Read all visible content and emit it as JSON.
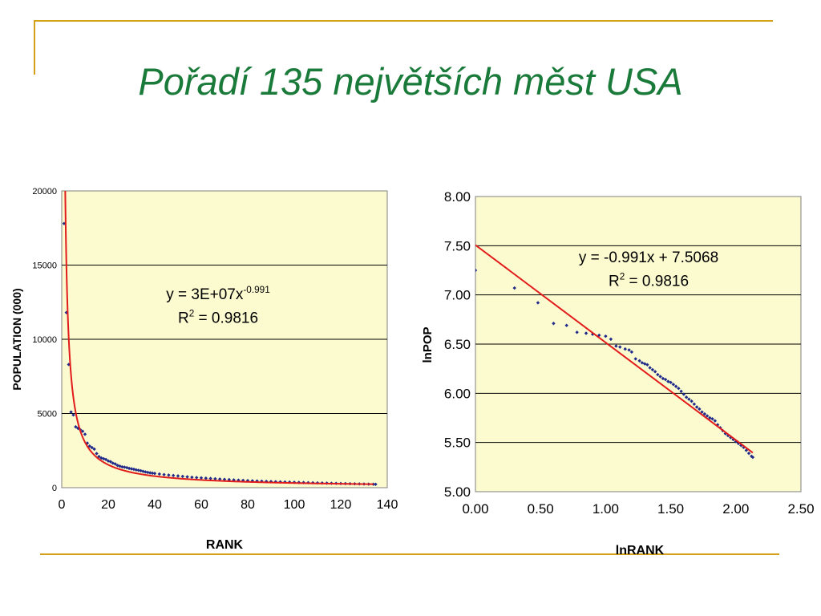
{
  "slide": {
    "title": "Pořadí 135 největších měst USA"
  },
  "colors": {
    "accent_line": "#d4a017",
    "title": "#1a7a3a",
    "plot_bg": "#fcfbd0",
    "trend": "#e21b1b",
    "points": "#1f2a8a"
  },
  "chart_data": [
    {
      "type": "scatter",
      "xlabel": "RANK",
      "ylabel": "POPULATION (000)",
      "xlim": [
        0,
        140
      ],
      "ylim": [
        0,
        20000
      ],
      "xticks": [
        "0",
        "20",
        "40",
        "60",
        "80",
        "100",
        "120",
        "140"
      ],
      "yticks": [
        "0",
        "5000",
        "10000",
        "15000",
        "20000"
      ],
      "grid": "horizontal",
      "trendline": {
        "type": "power",
        "a": 30000000,
        "b": -0.991
      },
      "equation": {
        "line1_base": "y = 3E+07x",
        "line1_sup": "-0.991",
        "line2_base": "R",
        "line2_sup": "2",
        "line2_rest": " = 0.9816"
      },
      "points": [
        [
          1,
          17800
        ],
        [
          2,
          11800
        ],
        [
          3,
          8300
        ],
        [
          4,
          5100
        ],
        [
          5,
          4900
        ],
        [
          6,
          4100
        ],
        [
          7,
          4000
        ],
        [
          8,
          3900
        ],
        [
          9,
          3800
        ],
        [
          10,
          3600
        ],
        [
          11,
          3000
        ],
        [
          12,
          2800
        ],
        [
          13,
          2700
        ],
        [
          14,
          2600
        ],
        [
          15,
          2300
        ],
        [
          16,
          2100
        ],
        [
          17,
          2000
        ],
        [
          18,
          1950
        ],
        [
          19,
          1900
        ],
        [
          20,
          1800
        ],
        [
          21,
          1750
        ],
        [
          22,
          1650
        ],
        [
          23,
          1600
        ],
        [
          24,
          1500
        ],
        [
          25,
          1450
        ],
        [
          26,
          1400
        ],
        [
          27,
          1380
        ],
        [
          28,
          1350
        ],
        [
          29,
          1300
        ],
        [
          30,
          1270
        ],
        [
          31,
          1240
        ],
        [
          32,
          1200
        ],
        [
          33,
          1170
        ],
        [
          34,
          1140
        ],
        [
          35,
          1100
        ],
        [
          36,
          1060
        ],
        [
          37,
          1030
        ],
        [
          38,
          1000
        ],
        [
          39,
          980
        ],
        [
          40,
          960
        ],
        [
          42,
          920
        ],
        [
          44,
          880
        ],
        [
          46,
          850
        ],
        [
          48,
          820
        ],
        [
          50,
          790
        ],
        [
          52,
          760
        ],
        [
          54,
          730
        ],
        [
          56,
          700
        ],
        [
          58,
          680
        ],
        [
          60,
          660
        ],
        [
          62,
          640
        ],
        [
          64,
          620
        ],
        [
          66,
          600
        ],
        [
          68,
          580
        ],
        [
          70,
          560
        ],
        [
          72,
          540
        ],
        [
          74,
          520
        ],
        [
          76,
          505
        ],
        [
          78,
          490
        ],
        [
          80,
          475
        ],
        [
          82,
          460
        ],
        [
          84,
          448
        ],
        [
          86,
          436
        ],
        [
          88,
          424
        ],
        [
          90,
          412
        ],
        [
          92,
          400
        ],
        [
          94,
          390
        ],
        [
          96,
          380
        ],
        [
          98,
          372
        ],
        [
          100,
          362
        ],
        [
          102,
          352
        ],
        [
          104,
          344
        ],
        [
          106,
          336
        ],
        [
          108,
          328
        ],
        [
          110,
          320
        ],
        [
          112,
          312
        ],
        [
          114,
          304
        ],
        [
          116,
          296
        ],
        [
          118,
          288
        ],
        [
          120,
          280
        ],
        [
          122,
          272
        ],
        [
          124,
          265
        ],
        [
          126,
          258
        ],
        [
          128,
          251
        ],
        [
          130,
          244
        ],
        [
          132,
          238
        ],
        [
          134,
          232
        ],
        [
          135,
          228
        ]
      ]
    },
    {
      "type": "scatter",
      "xlabel": "lnRANK",
      "ylabel": "lnPOP",
      "xlim": [
        0,
        2.5
      ],
      "ylim": [
        5,
        8
      ],
      "xticks": [
        "0.00",
        "0.50",
        "1.00",
        "1.50",
        "2.00",
        "2.50"
      ],
      "yticks": [
        "5.00",
        "5.50",
        "6.00",
        "6.50",
        "7.00",
        "7.50",
        "8.00"
      ],
      "grid": "horizontal",
      "trendline": {
        "type": "linear",
        "slope": -0.991,
        "intercept": 7.5068,
        "x_range": [
          0,
          2.13
        ]
      },
      "equation": {
        "line1_base": "y = -0.991x + 7.5068",
        "line1_sup": "",
        "line2_base": "R",
        "line2_sup": "2",
        "line2_rest": " = 0.9816"
      },
      "points": [
        [
          0.0,
          7.25
        ],
        [
          0.3,
          7.07
        ],
        [
          0.48,
          6.92
        ],
        [
          0.6,
          6.71
        ],
        [
          0.7,
          6.69
        ],
        [
          0.78,
          6.62
        ],
        [
          0.85,
          6.61
        ],
        [
          0.9,
          6.6
        ],
        [
          0.95,
          6.59
        ],
        [
          1.0,
          6.58
        ],
        [
          1.04,
          6.55
        ],
        [
          1.08,
          6.48
        ],
        [
          1.11,
          6.47
        ],
        [
          1.15,
          6.45
        ],
        [
          1.18,
          6.44
        ],
        [
          1.2,
          6.42
        ],
        [
          1.23,
          6.35
        ],
        [
          1.26,
          6.33
        ],
        [
          1.28,
          6.31
        ],
        [
          1.3,
          6.3
        ],
        [
          1.32,
          6.29
        ],
        [
          1.34,
          6.26
        ],
        [
          1.36,
          6.24
        ],
        [
          1.38,
          6.22
        ],
        [
          1.4,
          6.19
        ],
        [
          1.42,
          6.17
        ],
        [
          1.44,
          6.15
        ],
        [
          1.46,
          6.14
        ],
        [
          1.48,
          6.12
        ],
        [
          1.5,
          6.11
        ],
        [
          1.52,
          6.09
        ],
        [
          1.54,
          6.07
        ],
        [
          1.56,
          6.05
        ],
        [
          1.58,
          6.02
        ],
        [
          1.6,
          5.99
        ],
        [
          1.62,
          5.96
        ],
        [
          1.64,
          5.94
        ],
        [
          1.66,
          5.92
        ],
        [
          1.68,
          5.89
        ],
        [
          1.7,
          5.86
        ],
        [
          1.72,
          5.84
        ],
        [
          1.74,
          5.81
        ],
        [
          1.76,
          5.79
        ],
        [
          1.78,
          5.77
        ],
        [
          1.8,
          5.75
        ],
        [
          1.82,
          5.74
        ],
        [
          1.84,
          5.72
        ],
        [
          1.86,
          5.68
        ],
        [
          1.88,
          5.65
        ],
        [
          1.9,
          5.62
        ],
        [
          1.92,
          5.59
        ],
        [
          1.94,
          5.57
        ],
        [
          1.96,
          5.55
        ],
        [
          1.98,
          5.53
        ],
        [
          2.0,
          5.51
        ],
        [
          2.02,
          5.49
        ],
        [
          2.04,
          5.47
        ],
        [
          2.06,
          5.45
        ],
        [
          2.08,
          5.42
        ],
        [
          2.1,
          5.39
        ],
        [
          2.12,
          5.36
        ],
        [
          2.13,
          5.35
        ]
      ]
    }
  ]
}
